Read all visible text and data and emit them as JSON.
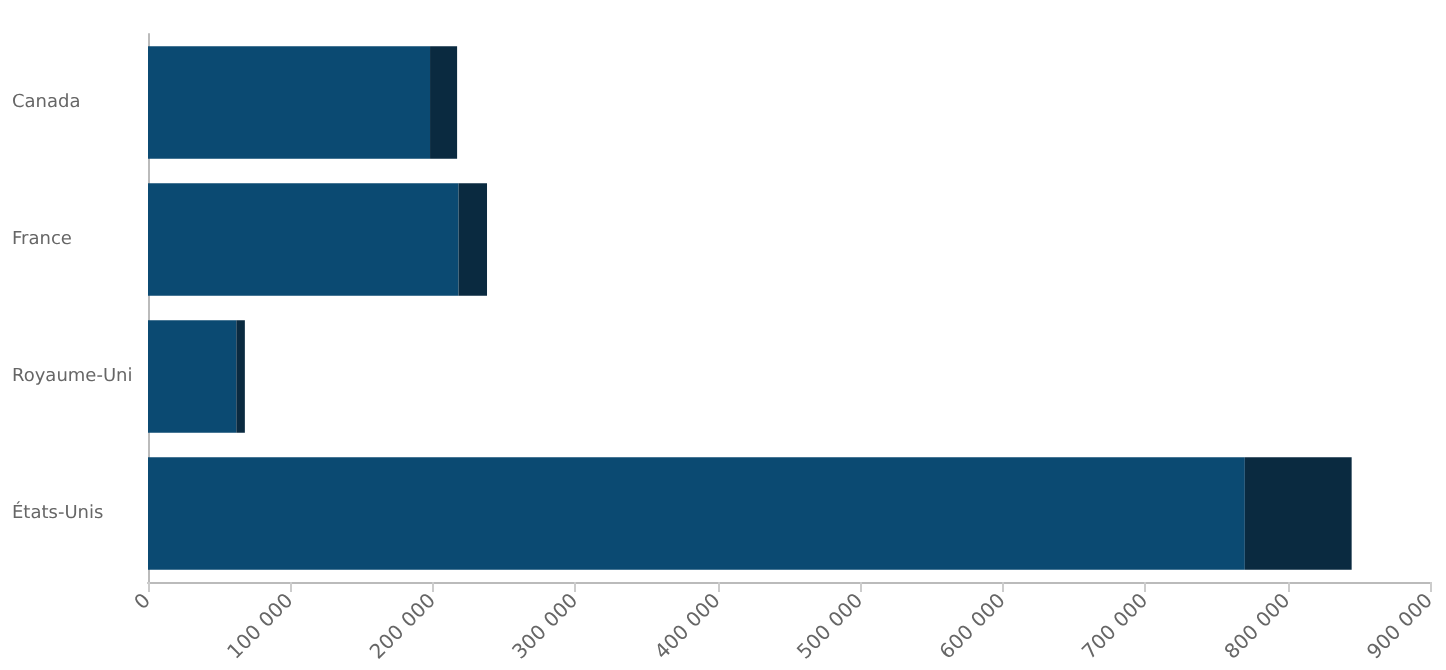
{
  "chart_data": {
    "type": "bar",
    "orientation": "horizontal",
    "stacked": true,
    "categories": [
      "Canada",
      "France",
      "Royaume-Uni",
      "États-Unis"
    ],
    "series": [
      {
        "color": "#0b4a72",
        "values": [
          198000,
          218000,
          62000,
          770000
        ]
      },
      {
        "color": "#0a2a40",
        "values": [
          19000,
          20000,
          6000,
          75000
        ]
      }
    ],
    "xlim": [
      0,
      900000
    ],
    "xticks": [
      0,
      {
        "value": 100000,
        "label": "100 000"
      },
      {
        "value": 200000,
        "label": "200 000"
      },
      {
        "value": 300000,
        "label": "300 000"
      },
      {
        "value": 400000,
        "label": "400 000"
      },
      {
        "value": 500000,
        "label": "500 000"
      },
      {
        "value": 600000,
        "label": "600 000"
      },
      {
        "value": 700000,
        "label": "700 000"
      },
      {
        "value": 800000,
        "label": "800 000"
      },
      {
        "value": 900000,
        "label": "900 000"
      }
    ],
    "grid": false
  }
}
